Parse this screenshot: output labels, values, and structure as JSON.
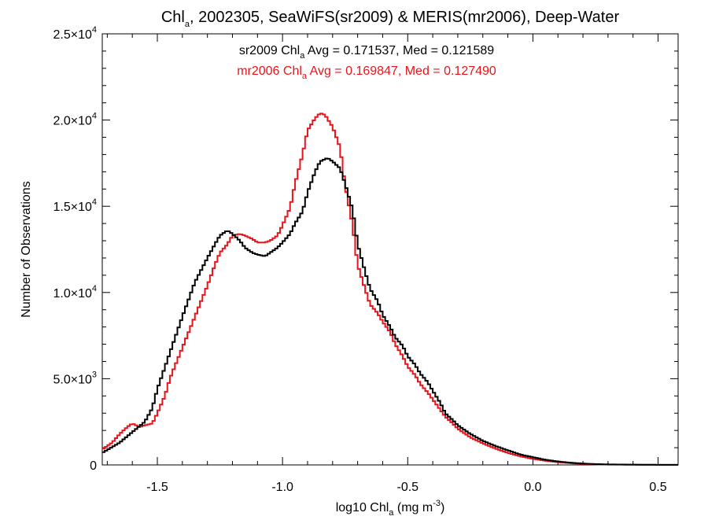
{
  "chart_data": {
    "type": "line",
    "title": {
      "pre": "Chl",
      "sub": "a",
      "post": ", 2002305, SeaWiFS(sr2009) & MERIS(mr2006), Deep-Water"
    },
    "xlabel": {
      "pre": "log10 Chl",
      "sub": "a",
      "mid": " (mg m",
      "sup": "-3",
      "post": ")"
    },
    "ylabel": "Number of Observations",
    "xlim": [
      -1.72,
      0.58
    ],
    "ylim": [
      0,
      25000
    ],
    "x_ticks": [
      -1.5,
      -1.0,
      -0.5,
      0.0,
      0.5
    ],
    "x_tick_labels": [
      "-1.5",
      "-1.0",
      "-0.5",
      "0.0",
      "0.5"
    ],
    "y_ticks": [
      0,
      5000,
      10000,
      15000,
      20000,
      25000
    ],
    "y_tick_labels": [
      {
        "base": "0",
        "exp": ""
      },
      {
        "base": "5.0×10",
        "exp": "3"
      },
      {
        "base": "1.0×10",
        "exp": "4"
      },
      {
        "base": "1.5×10",
        "exp": "4"
      },
      {
        "base": "2.0×10",
        "exp": "4"
      },
      {
        "base": "2.5×10",
        "exp": "4"
      }
    ],
    "annotations": [
      {
        "pre": "sr2009 Chl",
        "sub": "a",
        "post": " Avg = 0.171537, Med = 0.121589",
        "color": "#000000"
      },
      {
        "pre": "mr2006 Chl",
        "sub": "a",
        "post": " Avg = 0.169847, Med = 0.127490",
        "color": "#e8141c"
      }
    ],
    "series": [
      {
        "color": "#000000",
        "x": [
          -1.72,
          -1.65,
          -1.6,
          -1.55,
          -1.52,
          -1.5,
          -1.45,
          -1.4,
          -1.35,
          -1.3,
          -1.27,
          -1.25,
          -1.22,
          -1.2,
          -1.17,
          -1.15,
          -1.12,
          -1.1,
          -1.07,
          -1.05,
          -1.02,
          -1.0,
          -0.97,
          -0.95,
          -0.92,
          -0.9,
          -0.87,
          -0.85,
          -0.82,
          -0.8,
          -0.77,
          -0.75,
          -0.72,
          -0.7,
          -0.67,
          -0.65,
          -0.62,
          -0.6,
          -0.57,
          -0.55,
          -0.52,
          -0.5,
          -0.47,
          -0.45,
          -0.42,
          -0.4,
          -0.37,
          -0.35,
          -0.32,
          -0.3,
          -0.25,
          -0.2,
          -0.15,
          -0.1,
          -0.05,
          0.0,
          0.05,
          0.1,
          0.15,
          0.2,
          0.25,
          0.3,
          0.4,
          0.5,
          0.58
        ],
        "y": [
          700,
          1300,
          1900,
          2500,
          3300,
          4400,
          6500,
          8600,
          10600,
          12000,
          12800,
          13300,
          13600,
          13400,
          13000,
          12600,
          12300,
          12200,
          12100,
          12300,
          12600,
          12900,
          13400,
          14000,
          14700,
          15800,
          17000,
          17600,
          17800,
          17600,
          17200,
          16300,
          14800,
          12800,
          11200,
          10200,
          9500,
          8700,
          8000,
          7400,
          6900,
          6300,
          5800,
          5300,
          4800,
          4300,
          3600,
          3000,
          2600,
          2300,
          1800,
          1400,
          1100,
          850,
          600,
          450,
          300,
          200,
          130,
          80,
          50,
          30,
          15,
          8,
          5
        ]
      },
      {
        "color": "#e8141c",
        "x": [
          -1.72,
          -1.68,
          -1.65,
          -1.62,
          -1.6,
          -1.57,
          -1.55,
          -1.52,
          -1.5,
          -1.47,
          -1.45,
          -1.4,
          -1.35,
          -1.3,
          -1.27,
          -1.25,
          -1.22,
          -1.2,
          -1.17,
          -1.15,
          -1.12,
          -1.1,
          -1.07,
          -1.05,
          -1.02,
          -1.0,
          -0.97,
          -0.95,
          -0.92,
          -0.9,
          -0.87,
          -0.85,
          -0.83,
          -0.8,
          -0.77,
          -0.75,
          -0.72,
          -0.7,
          -0.67,
          -0.65,
          -0.62,
          -0.6,
          -0.57,
          -0.55,
          -0.52,
          -0.5,
          -0.47,
          -0.45,
          -0.42,
          -0.4,
          -0.37,
          -0.35,
          -0.32,
          -0.3,
          -0.25,
          -0.2,
          -0.15,
          -0.1,
          -0.05,
          0.0,
          0.05,
          0.1,
          0.15,
          0.2,
          0.25,
          0.3,
          0.4,
          0.5,
          0.58
        ],
        "y": [
          900,
          1300,
          1800,
          2200,
          2400,
          2200,
          2300,
          2400,
          3000,
          4000,
          5000,
          6800,
          8600,
          10400,
          11600,
          12300,
          12800,
          13300,
          13400,
          13300,
          13100,
          12900,
          12900,
          13000,
          13300,
          13900,
          14900,
          16300,
          18000,
          19400,
          20100,
          20400,
          20300,
          19600,
          18400,
          16200,
          13900,
          11600,
          10200,
          9300,
          8800,
          8300,
          7700,
          7000,
          6300,
          5700,
          5200,
          4700,
          4200,
          3800,
          3200,
          2800,
          2400,
          2100,
          1600,
          1250,
          950,
          700,
          500,
          350,
          240,
          160,
          100,
          60,
          35,
          20,
          10,
          5,
          3
        ]
      }
    ]
  }
}
